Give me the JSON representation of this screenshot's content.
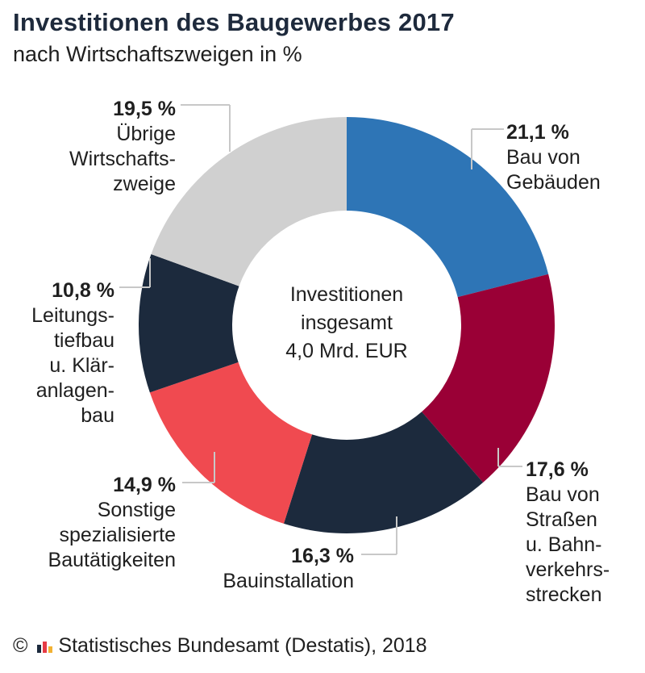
{
  "title": "Investitionen des Baugewerbes 2017",
  "subtitle": "nach Wirtschaftszweigen in %",
  "center_label": [
    "Investitionen",
    "insgesamt",
    "4,0 Mrd. EUR"
  ],
  "footer": {
    "copyright_symbol": "©",
    "text": "Statistisches Bundesamt (Destatis), 2018",
    "logo_colors": [
      "#1c2a3d",
      "#e63b45",
      "#f2b233"
    ]
  },
  "chart_data": {
    "type": "pie",
    "donut": true,
    "title": "Investitionen des Baugewerbes 2017",
    "subtitle": "nach Wirtschaftszweigen in %",
    "unit": "%",
    "slices": [
      {
        "value": 21.1,
        "value_label": "21,1 %",
        "label_lines": [
          "Bau von",
          "Gebäuden"
        ],
        "color": "#2e75b6"
      },
      {
        "value": 17.6,
        "value_label": "17,6 %",
        "label_lines": [
          "Bau von",
          "Straßen",
          "u. Bahn-",
          "verkehrs-",
          "strecken"
        ],
        "color": "#9a0036"
      },
      {
        "value": 16.3,
        "value_label": "16,3 %",
        "label_lines": [
          "Bauinstallation"
        ],
        "color": "#1c2a3d"
      },
      {
        "value": 14.9,
        "value_label": "14,9 %",
        "label_lines": [
          "Sonstige",
          "spezialisierte",
          "Bautätigkeiten"
        ],
        "color": "#f04a50"
      },
      {
        "value": 10.8,
        "value_label": "10,8 %",
        "label_lines": [
          "Leitungs-",
          "tiefbau",
          "u. Klär-",
          "anlagen-",
          "bau"
        ],
        "color": "#1c2a3d"
      },
      {
        "value": 19.5,
        "value_label": "19,5 %",
        "label_lines": [
          "Übrige",
          "Wirtschafts-",
          "zweige"
        ],
        "color": "#d0d0d0"
      }
    ],
    "start_angle_deg": 0,
    "direction": "clockwise"
  }
}
